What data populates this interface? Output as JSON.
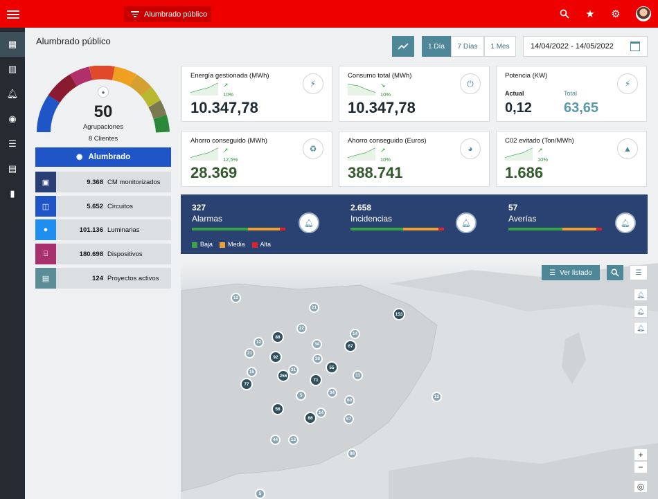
{
  "topbar": {
    "app_label": "Alumbrado público"
  },
  "page_title": "Alumbrado público",
  "period": {
    "day": "1 Día",
    "week": "7 Días",
    "month": "1 Mes"
  },
  "date_range": "14/04/2022 - 14/05/2022",
  "gauge": {
    "value": "50",
    "label": "Agrupaciones",
    "clients": "8 Clientes"
  },
  "alumbrado_button": "Alumbrado",
  "stats": [
    {
      "value": "9.368",
      "label": "CM monitorizados",
      "color": "#2a3f75"
    },
    {
      "value": "5.652",
      "label": "Circuitos",
      "color": "#1f55c7"
    },
    {
      "value": "101.136",
      "label": "Luminarias",
      "color": "#1e8ff0"
    },
    {
      "value": "180.698",
      "label": "Dispositivos",
      "color": "#a8306e"
    },
    {
      "value": "124",
      "label": "Proyectos activos",
      "color": "#5b8d96"
    }
  ],
  "cards": [
    {
      "title": "Energía gestionada (MWh)",
      "value": "10.347,78",
      "pct": "10%",
      "icon": "bolt-icon"
    },
    {
      "title": "Consumo total (MWh)",
      "value": "10.347,78",
      "pct": "10%",
      "icon": "plug-icon"
    },
    {
      "title": "Potencia (KW)",
      "actual_label": "Actual",
      "actual_value": "0,12",
      "total_label": "Total",
      "total_value": "63,65",
      "icon": "bolt-icon"
    },
    {
      "title": "Ahorro conseguido (MWh)",
      "value": "28.369",
      "pct": "12,5%",
      "icon": "eco-icon"
    },
    {
      "title": "Ahorro conseguido (Euros)",
      "value": "388.741",
      "pct": "10%",
      "icon": "piggy-bank-icon"
    },
    {
      "title": "C02 evitado (Ton/MWh)",
      "value": "1.686",
      "pct": "10%",
      "icon": "trees-icon"
    }
  ],
  "alarms": [
    {
      "value": "327",
      "label": "Alarmas",
      "split": [
        0.6,
        0.34,
        0.06
      ]
    },
    {
      "value": "2.658",
      "label": "Incidencias",
      "split": [
        0.56,
        0.38,
        0.06
      ]
    },
    {
      "value": "57",
      "label": "Averías",
      "split": [
        0.58,
        0.36,
        0.06
      ]
    }
  ],
  "legend": {
    "low": "Baja",
    "mid": "Media",
    "high": "Alta"
  },
  "colors": {
    "low": "#3aa34a",
    "mid": "#f0a030",
    "high": "#d9232d",
    "accent": "#4d8798",
    "alarm_bg": "#2a4272",
    "topbar": "#ee0000"
  },
  "map": {
    "list_button": "Ver listado",
    "clusters": [
      "12",
      "21",
      "153",
      "22",
      "14",
      "88",
      "12",
      "34",
      "67",
      "21",
      "92",
      "36",
      "55",
      "15",
      "256",
      "31",
      "11",
      "77",
      "71",
      "5",
      "34",
      "12",
      "60",
      "56",
      "88",
      "14",
      "67",
      "44",
      "13",
      "88",
      "5"
    ]
  }
}
